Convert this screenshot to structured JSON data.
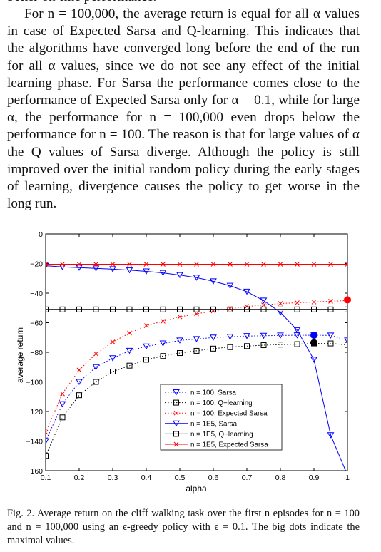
{
  "body_text": {
    "cutoff_line": "better on-line performance.",
    "paragraph": "For n = 100,000, the average return is equal for all α values in case of Expected Sarsa and Q-learning. This indicates that the algorithms have converged long before the end of the run for all α values, since we do not see any effect of the initial learning phase. For Sarsa the performance comes close to the performance of Expected Sarsa only for α = 0.1, while for large α, the performance for n = 100,000 even drops below the performance for n = 100. The reason is that for large values of α the Q values of Sarsa diverge. Although the policy is still improved over the initial random policy during the early stages of learning, divergence causes the policy to get worse in the long run."
  },
  "caption": "Fig. 2.   Average return on the cliff walking task over the first n episodes for n = 100 and n = 100,000 using an ϵ-greedy policy with ϵ = 0.1. The big dots indicate the maximal values.",
  "chart_data": {
    "type": "line",
    "xlabel": "alpha",
    "ylabel": "average return",
    "xlim": [
      0.1,
      1
    ],
    "ylim": [
      -160,
      0
    ],
    "xticks": [
      "0.1",
      "0.2",
      "0.3",
      "0.4",
      "0.5",
      "0.6",
      "0.7",
      "0.8",
      "0.9",
      "1"
    ],
    "yticks": [
      "0",
      "−20",
      "−40",
      "−60",
      "−80",
      "−100",
      "−120",
      "−140",
      "−160"
    ],
    "legend_position": "lower-center",
    "series": [
      {
        "name": "n = 100, Sarsa",
        "color": "#0000ff",
        "style": "dotted",
        "marker": "triangle-down",
        "x": [
          0.1,
          0.15,
          0.2,
          0.25,
          0.3,
          0.35,
          0.4,
          0.45,
          0.5,
          0.55,
          0.6,
          0.65,
          0.7,
          0.75,
          0.8,
          0.85,
          0.9,
          0.95,
          1.0
        ],
        "y": [
          -140,
          -115,
          -100,
          -90,
          -84,
          -79,
          -76,
          -74,
          -72,
          -71,
          -70,
          -69.5,
          -69,
          -68.8,
          -68.6,
          -68.5,
          -68.5,
          -68.6,
          -72
        ]
      },
      {
        "name": "n = 100, Q−learning",
        "color": "#000000",
        "style": "dotted",
        "marker": "square",
        "x": [
          0.1,
          0.15,
          0.2,
          0.25,
          0.3,
          0.35,
          0.4,
          0.45,
          0.5,
          0.55,
          0.6,
          0.65,
          0.7,
          0.75,
          0.8,
          0.85,
          0.9,
          0.95,
          1.0
        ],
        "y": [
          -150,
          -124,
          -109,
          -100,
          -93,
          -89,
          -85,
          -82.5,
          -80.5,
          -79,
          -77.5,
          -76.5,
          -75.8,
          -75.2,
          -74.8,
          -74.5,
          -74,
          -74,
          -75
        ]
      },
      {
        "name": "n = 100, Expected Sarsa",
        "color": "#ff0000",
        "style": "dotted",
        "marker": "x",
        "x": [
          0.1,
          0.15,
          0.2,
          0.25,
          0.3,
          0.35,
          0.4,
          0.45,
          0.5,
          0.55,
          0.6,
          0.65,
          0.7,
          0.75,
          0.8,
          0.85,
          0.9,
          0.95,
          1.0
        ],
        "y": [
          -134,
          -108,
          -92,
          -81,
          -73,
          -67,
          -62,
          -59,
          -56,
          -54,
          -52,
          -50.5,
          -49,
          -48,
          -47,
          -46.5,
          -46,
          -45.5,
          -45
        ]
      },
      {
        "name": "n = 1E5, Sarsa",
        "color": "#0000ff",
        "style": "solid",
        "marker": "triangle-down",
        "x": [
          0.1,
          0.15,
          0.2,
          0.25,
          0.3,
          0.35,
          0.4,
          0.45,
          0.5,
          0.55,
          0.6,
          0.65,
          0.7,
          0.75,
          0.8,
          0.85,
          0.9,
          0.95,
          1.0
        ],
        "y": [
          -21.5,
          -22.3,
          -22.8,
          -23.3,
          -23.8,
          -24.5,
          -25.3,
          -26.3,
          -27.8,
          -29.5,
          -32,
          -35,
          -39,
          -45,
          -53,
          -65,
          -85,
          -136,
          -163
        ]
      },
      {
        "name": "n = 1E5, Q−learning",
        "color": "#000000",
        "style": "solid",
        "marker": "square",
        "x": [
          0.1,
          0.15,
          0.2,
          0.25,
          0.3,
          0.35,
          0.4,
          0.45,
          0.5,
          0.55,
          0.6,
          0.65,
          0.7,
          0.75,
          0.8,
          0.85,
          0.9,
          0.95,
          1.0
        ],
        "y": [
          -51,
          -51,
          -51,
          -51,
          -51,
          -51,
          -51,
          -51,
          -51,
          -51,
          -51,
          -51,
          -51,
          -51,
          -51,
          -51,
          -51,
          -51,
          -51
        ]
      },
      {
        "name": "n = 1E5, Expected Sarsa",
        "color": "#ff0000",
        "style": "solid",
        "marker": "x",
        "x": [
          0.1,
          0.15,
          0.2,
          0.25,
          0.3,
          0.35,
          0.4,
          0.45,
          0.5,
          0.55,
          0.6,
          0.65,
          0.7,
          0.75,
          0.8,
          0.85,
          0.9,
          0.95,
          1.0
        ],
        "y": [
          -20.5,
          -20.5,
          -20.5,
          -20.5,
          -20.5,
          -20.5,
          -20.5,
          -20.5,
          -20.5,
          -20.5,
          -20.5,
          -20.5,
          -20.5,
          -20.5,
          -20.5,
          -20.5,
          -20.5,
          -20.5,
          -20.5
        ]
      }
    ],
    "max_points": [
      {
        "x": 0.9,
        "y": -68.5,
        "color": "#0000ff"
      },
      {
        "x": 0.9,
        "y": -73.5,
        "color": "#000000"
      },
      {
        "x": 1.0,
        "y": -44.5,
        "color": "#ff0000"
      }
    ]
  }
}
